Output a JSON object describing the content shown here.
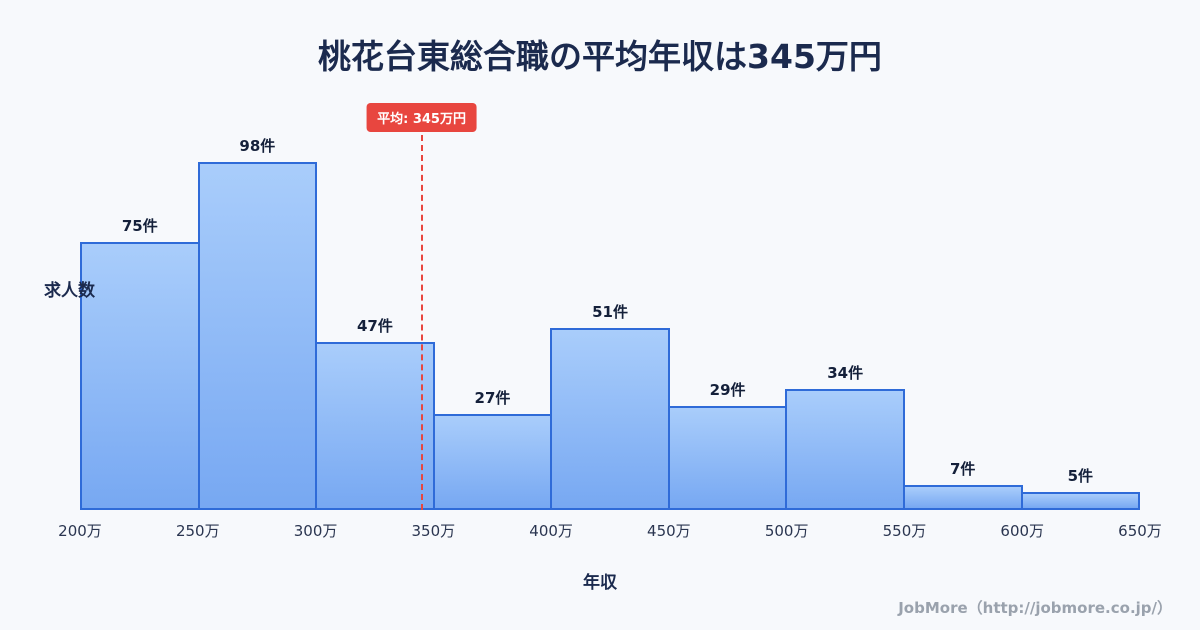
{
  "colors": {
    "background": "#f7f9fc",
    "title": "#1b2a4e",
    "bar_top": "#a9cdfb",
    "bar_bottom": "#77a8f2",
    "bar_border": "#2f6bd8",
    "average": "#e8463f",
    "label": "#14203a",
    "tick": "#2a3550",
    "footer": "#9aa2ad"
  },
  "chart_data": {
    "type": "bar",
    "title": "桃花台東総合職の平均年収は345万円",
    "xlabel": "年収",
    "ylabel": "求人数",
    "categories": [
      "200万",
      "250万",
      "300万",
      "350万",
      "400万",
      "450万",
      "500万",
      "550万",
      "600万",
      "650万"
    ],
    "values": [
      75,
      98,
      47,
      27,
      51,
      29,
      34,
      7,
      5
    ],
    "value_labels": [
      "75件",
      "98件",
      "47件",
      "27件",
      "51件",
      "29件",
      "34件",
      "7件",
      "5件"
    ],
    "x_min": 200,
    "x_max": 650,
    "ylim": [
      0,
      105
    ],
    "average": {
      "label": "平均: 345万円",
      "value": 345
    },
    "legend": "none",
    "grid": "off",
    "footer": "JobMore（http://jobmore.co.jp/）"
  }
}
